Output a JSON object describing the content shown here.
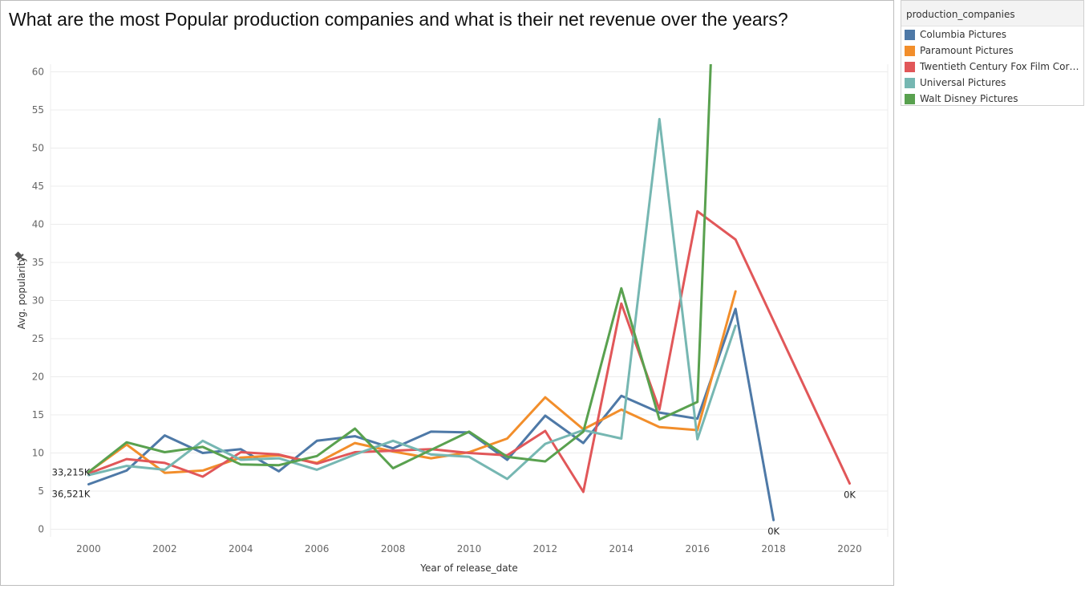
{
  "title": "What are the most Popular production companies and what is their net revenue over the years?",
  "legend": {
    "title": "production_companies",
    "items": [
      {
        "label": "Columbia Pictures",
        "color": "#4e79a7"
      },
      {
        "label": "Paramount Pictures",
        "color": "#f28e2b"
      },
      {
        "label": "Twentieth Century Fox Film Corpo..",
        "color": "#e15759"
      },
      {
        "label": "Universal Pictures",
        "color": "#76b7b2"
      },
      {
        "label": "Walt Disney Pictures",
        "color": "#59a14f"
      }
    ]
  },
  "pin_icon": "pin-icon",
  "chart_data": {
    "type": "line",
    "title": "What are the most Popular production companies and what is their net revenue over the years?",
    "xlabel": "Year of release_date",
    "ylabel": "Avg. popularity",
    "xlim": [
      1999,
      2021
    ],
    "ylim": [
      -1,
      61
    ],
    "xticks": [
      2000,
      2002,
      2004,
      2006,
      2008,
      2010,
      2012,
      2014,
      2016,
      2018,
      2020
    ],
    "yticks": [
      0,
      5,
      10,
      15,
      20,
      25,
      30,
      35,
      40,
      45,
      50,
      55,
      60
    ],
    "grid": true,
    "legend_position": "right",
    "series": [
      {
        "name": "Columbia Pictures",
        "color": "#4e79a7",
        "x": [
          2000,
          2001,
          2002,
          2003,
          2004,
          2005,
          2006,
          2007,
          2008,
          2009,
          2010,
          2011,
          2012,
          2013,
          2014,
          2015,
          2016,
          2017,
          2018
        ],
        "y": [
          5.9,
          7.7,
          12.3,
          10.0,
          10.5,
          7.6,
          11.6,
          12.2,
          10.6,
          12.8,
          12.7,
          9.1,
          14.9,
          11.3,
          17.5,
          15.3,
          14.5,
          28.9,
          1.2
        ]
      },
      {
        "name": "Paramount Pictures",
        "color": "#f28e2b",
        "x": [
          2000,
          2001,
          2002,
          2003,
          2004,
          2005,
          2006,
          2007,
          2008,
          2009,
          2010,
          2011,
          2012,
          2013,
          2014,
          2015,
          2016,
          2017
        ],
        "y": [
          7.5,
          11.1,
          7.4,
          7.7,
          9.4,
          9.7,
          8.7,
          11.3,
          10.2,
          9.3,
          10.1,
          11.9,
          17.3,
          13.1,
          15.7,
          13.4,
          13.0,
          31.2
        ]
      },
      {
        "name": "Twentieth Century Fox Film Corpo..",
        "color": "#e15759",
        "x": [
          2000,
          2001,
          2002,
          2003,
          2004,
          2005,
          2006,
          2007,
          2008,
          2009,
          2010,
          2011,
          2012,
          2013,
          2014,
          2015,
          2016,
          2017,
          2020
        ],
        "y": [
          7.3,
          9.2,
          8.7,
          6.9,
          10.1,
          9.8,
          8.6,
          10.1,
          10.3,
          10.5,
          10.0,
          9.7,
          12.9,
          4.9,
          29.6,
          15.7,
          41.7,
          38.0,
          6.0
        ]
      },
      {
        "name": "Universal Pictures",
        "color": "#76b7b2",
        "x": [
          2000,
          2001,
          2002,
          2003,
          2004,
          2005,
          2006,
          2007,
          2008,
          2009,
          2010,
          2011,
          2012,
          2013,
          2014,
          2015,
          2016,
          2017
        ],
        "y": [
          7.1,
          8.3,
          7.8,
          11.6,
          9.1,
          9.3,
          7.8,
          9.8,
          11.6,
          9.8,
          9.5,
          6.6,
          11.2,
          13.0,
          11.9,
          53.8,
          11.8,
          26.7
        ]
      },
      {
        "name": "Walt Disney Pictures",
        "color": "#59a14f",
        "x": [
          2000,
          2001,
          2002,
          2003,
          2004,
          2005,
          2006,
          2007,
          2008,
          2009,
          2010,
          2011,
          2012,
          2013,
          2014,
          2015,
          2016,
          2016.35
        ],
        "y": [
          7.5,
          11.4,
          10.1,
          10.8,
          8.5,
          8.4,
          9.6,
          13.2,
          8.0,
          10.4,
          12.8,
          9.5,
          8.9,
          12.8,
          31.6,
          14.4,
          16.7,
          61.0
        ]
      }
    ],
    "annotations": [
      {
        "text": "33,215K",
        "x": 2000,
        "y": 7.5,
        "anchor": "end"
      },
      {
        "text": "36,521K",
        "x": 2000,
        "y": 5.9,
        "anchor": "end"
      },
      {
        "text": "0K",
        "x": 2018,
        "y": 1.2,
        "anchor": "middle"
      },
      {
        "text": "0K",
        "x": 2020,
        "y": 6.0,
        "anchor": "middle"
      }
    ]
  }
}
